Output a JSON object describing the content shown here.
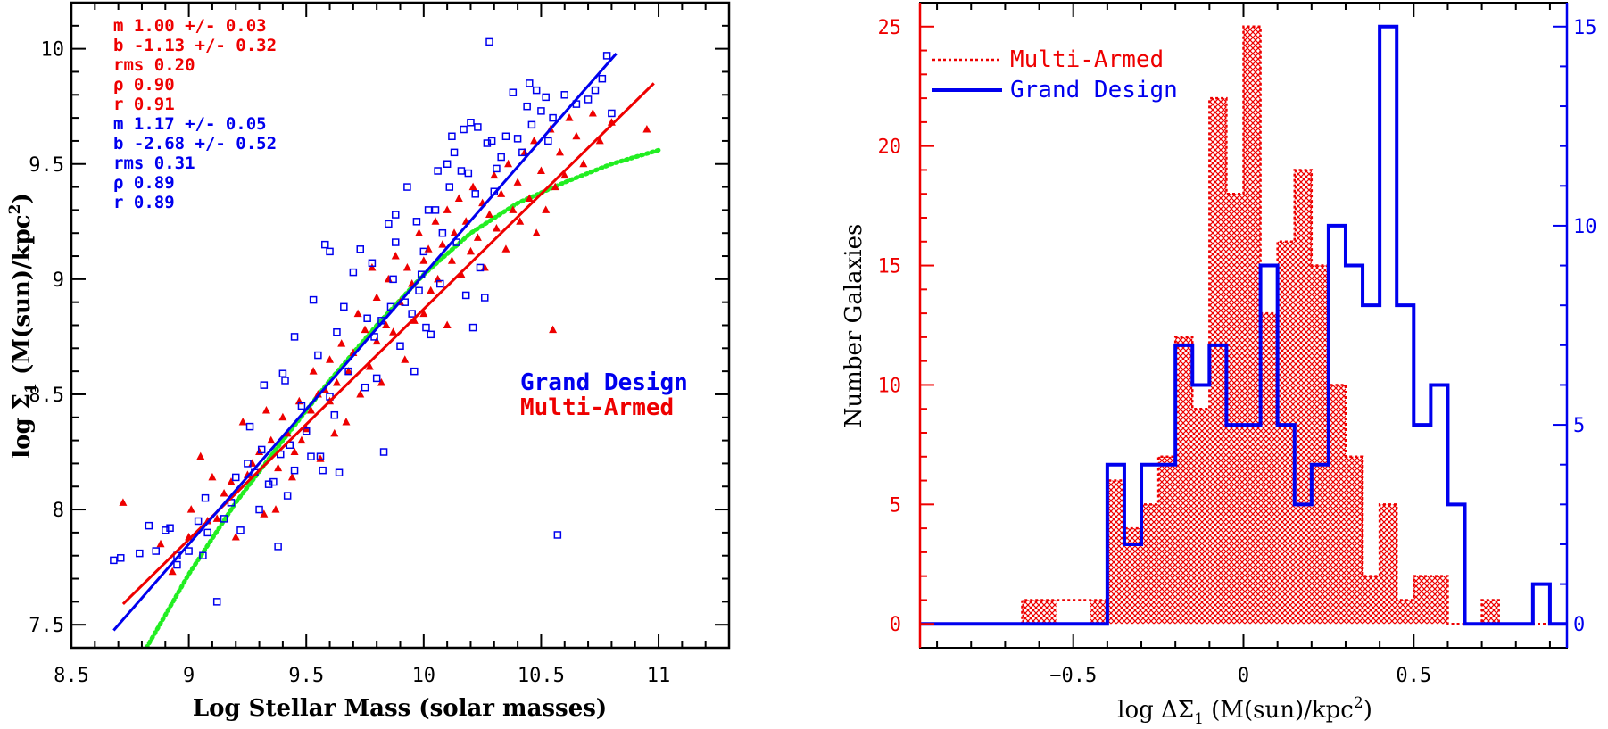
{
  "chart_data": [
    {
      "type": "scatter",
      "xlabel": "Log Stellar Mass (solar masses)",
      "ylabel_prefix": "log Σ",
      "ylabel_sub": "1",
      "ylabel_suffix": " (M(sun)/kpc",
      "ylabel_sup": "2",
      "ylabel_end": ")",
      "xlim": [
        8.5,
        11.3
      ],
      "ylim": [
        7.4,
        10.2
      ],
      "xticks": [
        8.5,
        9,
        9.5,
        10,
        10.5,
        11
      ],
      "xtick_labels": [
        "8.5",
        "9",
        "9.5",
        "10",
        "10.5",
        "11"
      ],
      "yticks": [
        7.5,
        8,
        8.5,
        9,
        9.5,
        10
      ],
      "ytick_labels": [
        "7.5",
        "8",
        "8.5",
        "9",
        "9.5",
        "10"
      ],
      "colors": {
        "grand": "#0000ee",
        "multi": "#ee0000",
        "curve": "#22ee22"
      },
      "annotations_multi": [
        "m 1.00 +/- 0.03",
        "b -1.13 +/- 0.32",
        "rms 0.20",
        "ρ 0.90",
        "r 0.91"
      ],
      "annotations_grand": [
        "m 1.17 +/- 0.05",
        "b -2.68 +/- 0.52",
        "rms 0.31",
        "ρ 0.89",
        "r 0.89"
      ],
      "legend": {
        "grand": "Grand Design",
        "multi": "Multi-Armed"
      },
      "fit_multi": {
        "slope": 1.0,
        "intercept": -1.13,
        "x": [
          8.72,
          10.98
        ]
      },
      "fit_grand": {
        "slope": 1.17,
        "intercept": -2.68,
        "x": [
          8.68,
          10.82
        ]
      },
      "curve_green": {
        "x": [
          8.82,
          9.0,
          9.2,
          9.4,
          9.6,
          9.8,
          10.0,
          10.2,
          10.4,
          10.6,
          10.8,
          11.0
        ],
        "y": [
          7.4,
          7.72,
          8.03,
          8.3,
          8.56,
          8.8,
          9.02,
          9.2,
          9.33,
          9.42,
          9.5,
          9.56
        ]
      },
      "series_grand": [
        [
          8.68,
          7.78
        ],
        [
          8.71,
          7.79
        ],
        [
          8.79,
          7.81
        ],
        [
          8.83,
          7.93
        ],
        [
          8.86,
          7.82
        ],
        [
          8.9,
          7.91
        ],
        [
          8.92,
          7.92
        ],
        [
          8.95,
          7.8
        ],
        [
          8.95,
          7.76
        ],
        [
          9.0,
          7.82
        ],
        [
          9.04,
          7.95
        ],
        [
          9.06,
          7.8
        ],
        [
          9.07,
          8.05
        ],
        [
          9.08,
          7.9
        ],
        [
          9.12,
          7.6
        ],
        [
          9.15,
          7.96
        ],
        [
          9.18,
          8.03
        ],
        [
          9.2,
          8.14
        ],
        [
          9.22,
          7.91
        ],
        [
          9.25,
          8.2
        ],
        [
          9.26,
          8.36
        ],
        [
          9.28,
          8.16
        ],
        [
          9.3,
          8.0
        ],
        [
          9.31,
          8.26
        ],
        [
          9.32,
          8.54
        ],
        [
          9.34,
          8.11
        ],
        [
          9.36,
          8.12
        ],
        [
          9.38,
          7.84
        ],
        [
          9.39,
          8.24
        ],
        [
          9.4,
          8.59
        ],
        [
          9.41,
          8.56
        ],
        [
          9.42,
          8.06
        ],
        [
          9.43,
          8.28
        ],
        [
          9.45,
          8.75
        ],
        [
          9.45,
          8.17
        ],
        [
          9.48,
          8.45
        ],
        [
          9.5,
          8.34
        ],
        [
          9.52,
          8.23
        ],
        [
          9.53,
          8.91
        ],
        [
          9.55,
          8.67
        ],
        [
          9.56,
          8.23
        ],
        [
          9.57,
          8.17
        ],
        [
          9.58,
          9.15
        ],
        [
          9.6,
          9.12
        ],
        [
          9.6,
          8.49
        ],
        [
          9.62,
          8.41
        ],
        [
          9.63,
          8.77
        ],
        [
          9.64,
          8.16
        ],
        [
          9.66,
          8.88
        ],
        [
          9.68,
          8.6
        ],
        [
          9.7,
          9.03
        ],
        [
          9.73,
          9.13
        ],
        [
          9.75,
          8.53
        ],
        [
          9.76,
          8.83
        ],
        [
          9.78,
          9.07
        ],
        [
          9.79,
          8.75
        ],
        [
          9.8,
          8.57
        ],
        [
          9.82,
          8.82
        ],
        [
          9.83,
          8.25
        ],
        [
          9.85,
          9.24
        ],
        [
          9.86,
          8.88
        ],
        [
          9.87,
          9.0
        ],
        [
          9.88,
          9.16
        ],
        [
          9.88,
          9.28
        ],
        [
          9.9,
          8.71
        ],
        [
          9.92,
          8.9
        ],
        [
          9.93,
          9.4
        ],
        [
          9.95,
          8.85
        ],
        [
          9.96,
          8.6
        ],
        [
          9.97,
          9.25
        ],
        [
          9.98,
          8.95
        ],
        [
          9.99,
          9.02
        ],
        [
          10.0,
          9.12
        ],
        [
          10.01,
          8.79
        ],
        [
          10.02,
          9.3
        ],
        [
          10.03,
          8.76
        ],
        [
          10.05,
          9.3
        ],
        [
          10.06,
          9.47
        ],
        [
          10.07,
          8.98
        ],
        [
          10.08,
          9.2
        ],
        [
          10.1,
          9.5
        ],
        [
          10.11,
          9.4
        ],
        [
          10.12,
          9.62
        ],
        [
          10.13,
          9.55
        ],
        [
          10.14,
          9.16
        ],
        [
          10.16,
          9.47
        ],
        [
          10.17,
          9.65
        ],
        [
          10.18,
          8.93
        ],
        [
          10.19,
          9.46
        ],
        [
          10.2,
          9.68
        ],
        [
          10.21,
          8.79
        ],
        [
          10.22,
          9.37
        ],
        [
          10.23,
          9.66
        ],
        [
          10.24,
          9.05
        ],
        [
          10.26,
          8.92
        ],
        [
          10.27,
          9.59
        ],
        [
          10.28,
          10.03
        ],
        [
          10.29,
          9.6
        ],
        [
          10.3,
          9.38
        ],
        [
          10.31,
          9.48
        ],
        [
          10.33,
          9.53
        ],
        [
          10.35,
          9.62
        ],
        [
          10.38,
          9.81
        ],
        [
          10.4,
          9.61
        ],
        [
          10.42,
          9.55
        ],
        [
          10.44,
          9.75
        ],
        [
          10.45,
          9.85
        ],
        [
          10.46,
          9.67
        ],
        [
          10.48,
          9.82
        ],
        [
          10.5,
          9.73
        ],
        [
          10.52,
          9.79
        ],
        [
          10.53,
          9.6
        ],
        [
          10.55,
          9.7
        ],
        [
          10.57,
          7.89
        ],
        [
          10.6,
          9.8
        ],
        [
          10.65,
          9.76
        ],
        [
          10.7,
          9.78
        ],
        [
          10.73,
          9.82
        ],
        [
          10.76,
          9.87
        ],
        [
          10.78,
          9.97
        ],
        [
          10.8,
          9.72
        ]
      ],
      "series_multi": [
        [
          8.72,
          8.03
        ],
        [
          8.88,
          7.85
        ],
        [
          8.93,
          7.73
        ],
        [
          9.0,
          7.88
        ],
        [
          9.01,
          8.0
        ],
        [
          9.05,
          8.23
        ],
        [
          9.08,
          7.95
        ],
        [
          9.1,
          8.14
        ],
        [
          9.12,
          7.96
        ],
        [
          9.15,
          8.07
        ],
        [
          9.18,
          8.12
        ],
        [
          9.2,
          7.88
        ],
        [
          9.23,
          8.38
        ],
        [
          9.25,
          8.15
        ],
        [
          9.27,
          8.2
        ],
        [
          9.3,
          8.25
        ],
        [
          9.32,
          7.98
        ],
        [
          9.33,
          8.43
        ],
        [
          9.35,
          8.3
        ],
        [
          9.37,
          8.0
        ],
        [
          9.38,
          8.18
        ],
        [
          9.4,
          8.4
        ],
        [
          9.42,
          8.33
        ],
        [
          9.44,
          8.14
        ],
        [
          9.45,
          8.25
        ],
        [
          9.47,
          8.47
        ],
        [
          9.48,
          8.3
        ],
        [
          9.5,
          8.35
        ],
        [
          9.52,
          8.43
        ],
        [
          9.53,
          8.6
        ],
        [
          9.55,
          8.5
        ],
        [
          9.56,
          8.22
        ],
        [
          9.58,
          8.52
        ],
        [
          9.6,
          8.47
        ],
        [
          9.6,
          8.65
        ],
        [
          9.62,
          8.33
        ],
        [
          9.63,
          8.55
        ],
        [
          9.65,
          8.72
        ],
        [
          9.67,
          8.38
        ],
        [
          9.68,
          8.6
        ],
        [
          9.7,
          8.68
        ],
        [
          9.72,
          8.85
        ],
        [
          9.73,
          8.5
        ],
        [
          9.75,
          8.78
        ],
        [
          9.77,
          8.62
        ],
        [
          9.78,
          9.05
        ],
        [
          9.8,
          8.73
        ],
        [
          9.8,
          8.92
        ],
        [
          9.82,
          8.55
        ],
        [
          9.84,
          8.8
        ],
        [
          9.85,
          9.0
        ],
        [
          9.87,
          8.77
        ],
        [
          9.88,
          9.1
        ],
        [
          9.9,
          8.9
        ],
        [
          9.92,
          8.65
        ],
        [
          9.93,
          9.05
        ],
        [
          9.95,
          8.98
        ],
        [
          9.96,
          8.82
        ],
        [
          9.98,
          9.2
        ],
        [
          10.0,
          8.85
        ],
        [
          10.0,
          9.08
        ],
        [
          10.02,
          9.13
        ],
        [
          10.03,
          8.95
        ],
        [
          10.05,
          9.25
        ],
        [
          10.06,
          9.0
        ],
        [
          10.08,
          9.15
        ],
        [
          10.1,
          8.8
        ],
        [
          10.1,
          9.3
        ],
        [
          10.12,
          9.08
        ],
        [
          10.13,
          9.2
        ],
        [
          10.15,
          9.35
        ],
        [
          10.16,
          9.02
        ],
        [
          10.18,
          9.25
        ],
        [
          10.2,
          9.12
        ],
        [
          10.21,
          9.4
        ],
        [
          10.23,
          9.18
        ],
        [
          10.25,
          9.33
        ],
        [
          10.26,
          9.05
        ],
        [
          10.28,
          9.28
        ],
        [
          10.3,
          9.45
        ],
        [
          10.31,
          9.22
        ],
        [
          10.33,
          9.37
        ],
        [
          10.35,
          9.13
        ],
        [
          10.36,
          9.5
        ],
        [
          10.38,
          9.3
        ],
        [
          10.4,
          9.42
        ],
        [
          10.41,
          9.25
        ],
        [
          10.43,
          9.55
        ],
        [
          10.45,
          9.35
        ],
        [
          10.47,
          9.6
        ],
        [
          10.48,
          9.2
        ],
        [
          10.5,
          9.47
        ],
        [
          10.52,
          9.3
        ],
        [
          10.54,
          9.65
        ],
        [
          10.55,
          8.78
        ],
        [
          10.56,
          9.4
        ],
        [
          10.58,
          9.55
        ],
        [
          10.6,
          9.45
        ],
        [
          10.62,
          9.7
        ],
        [
          10.65,
          9.62
        ],
        [
          10.68,
          9.5
        ],
        [
          10.72,
          9.72
        ],
        [
          10.75,
          9.6
        ],
        [
          10.8,
          9.68
        ],
        [
          10.95,
          9.65
        ]
      ]
    },
    {
      "type": "bar",
      "subtype": "histogram",
      "xlabel_prefix": "log ΔΣ",
      "xlabel_sub": "1",
      "xlabel_suffix": " (M(sun)/kpc",
      "xlabel_sup": "2",
      "xlabel_end": ")",
      "ylabel": "Number Galaxies",
      "xlim": [
        -0.95,
        0.95
      ],
      "ylim_left": [
        -1,
        26
      ],
      "ylim_right": [
        -0.6,
        15.6
      ],
      "xticks": [
        -0.5,
        0,
        0.5
      ],
      "xtick_labels": [
        "−0.5",
        "0",
        "0.5"
      ],
      "yticks_left": [
        0,
        5,
        10,
        15,
        20,
        25
      ],
      "ytick_labels_left": [
        "0",
        "5",
        "10",
        "15",
        "20",
        "25"
      ],
      "yticks_right": [
        0,
        5,
        10,
        15
      ],
      "ytick_labels_right": [
        "0",
        "5",
        "10",
        "15"
      ],
      "bin_width": 0.05,
      "colors": {
        "grand": "#0000ee",
        "multi": "#ee0000"
      },
      "legend": {
        "multi": "Multi-Armed",
        "grand": "Grand Design"
      },
      "series": [
        {
          "name": "Multi-Armed",
          "axis": "left",
          "bin_starts": [
            -0.65,
            -0.6,
            -0.45,
            -0.4,
            -0.35,
            -0.3,
            -0.25,
            -0.2,
            -0.15,
            -0.1,
            -0.05,
            0.0,
            0.05,
            0.1,
            0.15,
            0.2,
            0.25,
            0.3,
            0.35,
            0.4,
            0.45,
            0.5,
            0.55,
            0.6,
            0.65,
            0.7,
            0.75
          ],
          "values": [
            1,
            1,
            1,
            6,
            4,
            5,
            7,
            12,
            9,
            22,
            18,
            25,
            13,
            16,
            19,
            15,
            10,
            7,
            2,
            5,
            1,
            2,
            2,
            0,
            0,
            1,
            0
          ]
        },
        {
          "name": "Grand Design",
          "axis": "right",
          "bin_starts": [
            -0.4,
            -0.35,
            -0.3,
            -0.25,
            -0.2,
            -0.15,
            -0.1,
            -0.05,
            0.0,
            0.05,
            0.1,
            0.15,
            0.2,
            0.25,
            0.3,
            0.35,
            0.4,
            0.45,
            0.5,
            0.55,
            0.6,
            0.65,
            0.7,
            0.75,
            0.8,
            0.85,
            0.9
          ],
          "values": [
            4,
            2,
            4,
            4,
            7,
            6,
            7,
            5,
            5,
            9,
            5,
            3,
            4,
            10,
            9,
            8,
            15,
            8,
            5,
            6,
            3,
            0,
            0,
            0,
            0,
            1,
            0
          ]
        }
      ]
    }
  ]
}
